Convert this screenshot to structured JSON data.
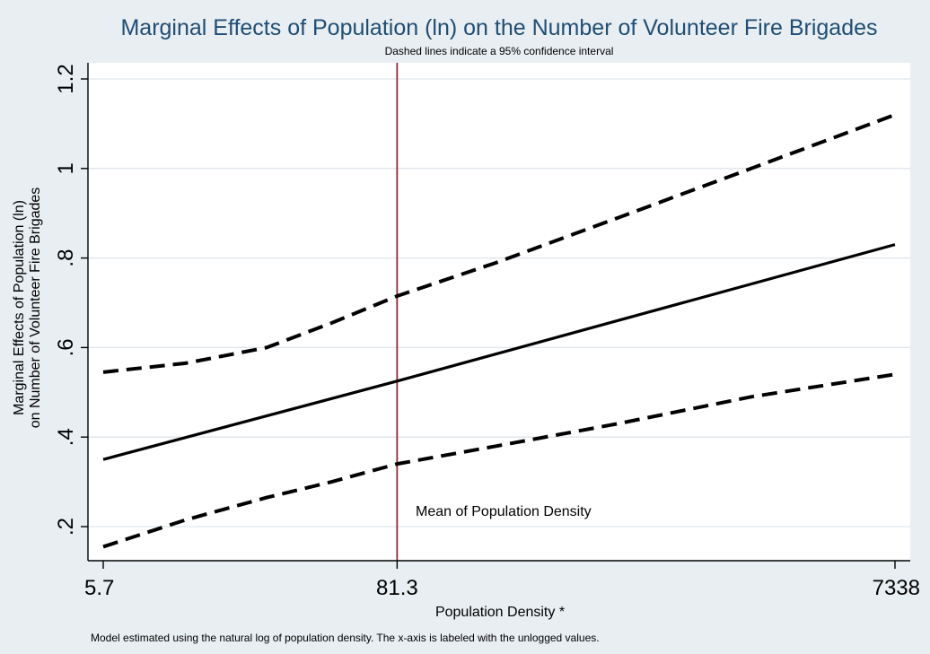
{
  "chart_data": {
    "type": "line",
    "title": "Marginal Effects of Population (ln) on the Number of Volunteer Fire Brigades",
    "subtitle": "Dashed lines indicate a 95% confidence interval",
    "xlabel": "Population Density *",
    "ylabel_line1": "Marginal Effects of Population (ln)",
    "ylabel_line2": "on Number of Volunteer Fire Brigades",
    "note": "Model estimated using the natural log of population density. The x-axis is labeled with the unlogged values.",
    "x": [
      5.7,
      81.3,
      7338
    ],
    "x_tick_labels": [
      "5.7",
      "81.3",
      "7338"
    ],
    "xscale": "log",
    "ylim": [
      0.15,
      1.2
    ],
    "y_ticks": [
      0.2,
      0.4,
      0.6,
      0.8,
      1.0,
      1.2
    ],
    "y_tick_labels": [
      ".2",
      ".4",
      ".6",
      ".8",
      "1",
      "1.2"
    ],
    "grid": true,
    "legend": "none",
    "series": [
      {
        "style": "solid",
        "points": [
          [
            5.7,
            0.35
          ],
          [
            81.3,
            0.525
          ],
          [
            7338,
            0.83
          ]
        ]
      },
      {
        "style": "dashed",
        "points": [
          [
            5.7,
            0.545
          ],
          [
            12,
            0.565
          ],
          [
            25,
            0.6
          ],
          [
            45,
            0.655
          ],
          [
            81.3,
            0.715
          ],
          [
            200,
            0.79
          ],
          [
            600,
            0.89
          ],
          [
            2000,
            1.0
          ],
          [
            7338,
            1.12
          ]
        ]
      },
      {
        "style": "dashed",
        "points": [
          [
            5.7,
            0.155
          ],
          [
            12,
            0.215
          ],
          [
            25,
            0.265
          ],
          [
            45,
            0.3
          ],
          [
            81.3,
            0.34
          ],
          [
            200,
            0.38
          ],
          [
            600,
            0.43
          ],
          [
            2000,
            0.49
          ],
          [
            7338,
            0.54
          ]
        ]
      }
    ],
    "reference_line": {
      "x": 81.3,
      "label": "Mean of Population Density",
      "color": "#8b2a35"
    },
    "colors": {
      "title": "#1f4d74",
      "plot_background": "#ffffff",
      "outer_background": "#e9eef2",
      "line": "#000000",
      "grid": "#dfe5ea"
    }
  }
}
